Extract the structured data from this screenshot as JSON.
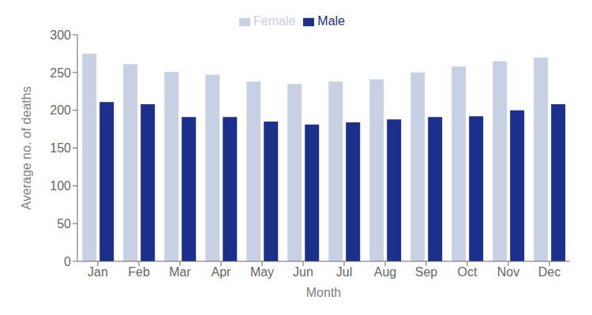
{
  "chart_data": {
    "type": "bar",
    "categories": [
      "Jan",
      "Feb",
      "Mar",
      "Apr",
      "May",
      "Jun",
      "Jul",
      "Aug",
      "Sep",
      "Oct",
      "Nov",
      "Dec"
    ],
    "series": [
      {
        "name": "Female",
        "color": "#c8d0e4",
        "values": [
          275,
          261,
          251,
          247,
          238,
          235,
          238,
          241,
          250,
          258,
          265,
          270
        ]
      },
      {
        "name": "Male",
        "color": "#1b2f8c",
        "values": [
          211,
          208,
          191,
          191,
          185,
          181,
          184,
          188,
          191,
          192,
          200,
          208
        ]
      }
    ],
    "xlabel": "Month",
    "ylabel": "Average no. of deaths",
    "ylim": [
      0,
      300
    ],
    "yticks": [
      0,
      50,
      100,
      150,
      200,
      250,
      300
    ],
    "grid": false,
    "legend": "upper center"
  }
}
